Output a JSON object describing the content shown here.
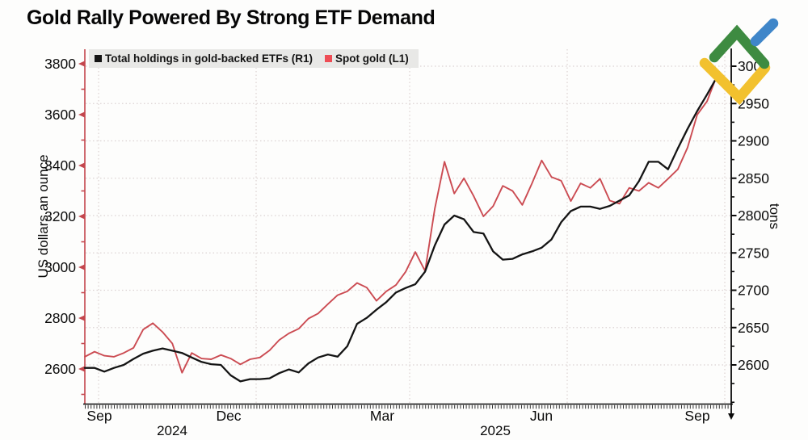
{
  "header": {
    "title": "Gold Rally Powered By Strong ETF Demand"
  },
  "legend": {
    "items": [
      {
        "label": "Total holdings in gold-backed ETFs (R1)",
        "swatch_color": "#141414"
      },
      {
        "label": "Spot gold (L1)",
        "swatch_color": "#ee4d55"
      }
    ]
  },
  "left_axis": {
    "title": "US dollars an ounce",
    "color": "#c4464d",
    "tick_labels": [
      "3800",
      "3600",
      "3400",
      "3200",
      "3000",
      "2800",
      "2600"
    ],
    "major_ticks": [
      3800,
      3600,
      3400,
      3200,
      3000,
      2800,
      2600
    ],
    "minor_ticks": [
      3700,
      3500,
      3300,
      3100,
      2900,
      2700,
      2500
    ]
  },
  "right_axis": {
    "title": "tons",
    "color": "#0a0a0a",
    "tick_labels": [
      "3000",
      "2950",
      "2900",
      "2850",
      "2800",
      "2750",
      "2700",
      "2650",
      "2600"
    ],
    "major_ticks": [
      3000,
      2950,
      2900,
      2850,
      2800,
      2750,
      2700,
      2650,
      2600
    ],
    "minor_ticks": [
      2975,
      2925,
      2875,
      2825,
      2775,
      2725,
      2675,
      2625,
      2575,
      2550
    ]
  },
  "x_axis": {
    "month_labels": [
      "Sep",
      "Dec",
      "Mar",
      "Jun",
      "Sep"
    ],
    "year_labels": [
      "2024",
      "2025"
    ]
  },
  "chart_data": {
    "type": "line",
    "x_range": "Sep 2024 to Sep 2025, 66 evenly spaced samples (approx. weekly)",
    "x_tick_labels": [
      "Sep",
      "Dec",
      "Mar",
      "Jun",
      "Sep"
    ],
    "year_tick_labels": [
      "2024",
      "2025"
    ],
    "grid": "dotted horizontal lines at right-axis 50-ton steps; dotted vertical lines at quarter starts",
    "legend_position": "top-left inside plot",
    "series": [
      {
        "name": "Spot gold (L1)",
        "axis": "left",
        "unit": "US dollars an ounce",
        "color": "#cb4b52",
        "axis_range": [
          2600,
          3800
        ],
        "values": [
          2648,
          2668,
          2652,
          2648,
          2663,
          2683,
          2755,
          2780,
          2745,
          2700,
          2585,
          2663,
          2641,
          2638,
          2655,
          2641,
          2618,
          2638,
          2645,
          2673,
          2714,
          2740,
          2758,
          2798,
          2818,
          2855,
          2890,
          2905,
          2938,
          2920,
          2868,
          2905,
          2930,
          2982,
          3060,
          2985,
          3230,
          3415,
          3290,
          3350,
          3280,
          3200,
          3240,
          3320,
          3300,
          3245,
          3330,
          3420,
          3355,
          3340,
          3260,
          3330,
          3312,
          3348,
          3262,
          3250,
          3312,
          3300,
          3332,
          3312,
          3348,
          3385,
          3470,
          3600,
          3652,
          3752
        ]
      },
      {
        "name": "Total holdings in gold-backed ETFs (R1)",
        "axis": "right",
        "unit": "tons",
        "color": "#141414",
        "axis_range": [
          2600,
          3000
        ],
        "values": [
          2596,
          2596,
          2591,
          2596,
          2600,
          2608,
          2615,
          2619,
          2622,
          2619,
          2616,
          2610,
          2604,
          2601,
          2600,
          2586,
          2578,
          2581,
          2581,
          2582,
          2589,
          2594,
          2590,
          2602,
          2610,
          2614,
          2611,
          2625,
          2655,
          2663,
          2674,
          2684,
          2697,
          2703,
          2708,
          2725,
          2760,
          2788,
          2800,
          2795,
          2778,
          2776,
          2752,
          2741,
          2742,
          2748,
          2752,
          2757,
          2768,
          2791,
          2806,
          2812,
          2812,
          2809,
          2813,
          2820,
          2827,
          2846,
          2872,
          2872,
          2862,
          2890,
          2916,
          2940,
          2962,
          2985
        ]
      }
    ]
  },
  "logo": {
    "name": "litefinance-logo",
    "colors": {
      "green": "#3e8b41",
      "blue": "#3f86c9",
      "yellow": "#f2c12e"
    }
  },
  "style_colors": {
    "gridline": "#dcd2d2",
    "legend_background": "#e8e8e6",
    "axis_black": "#0a0a0a"
  }
}
